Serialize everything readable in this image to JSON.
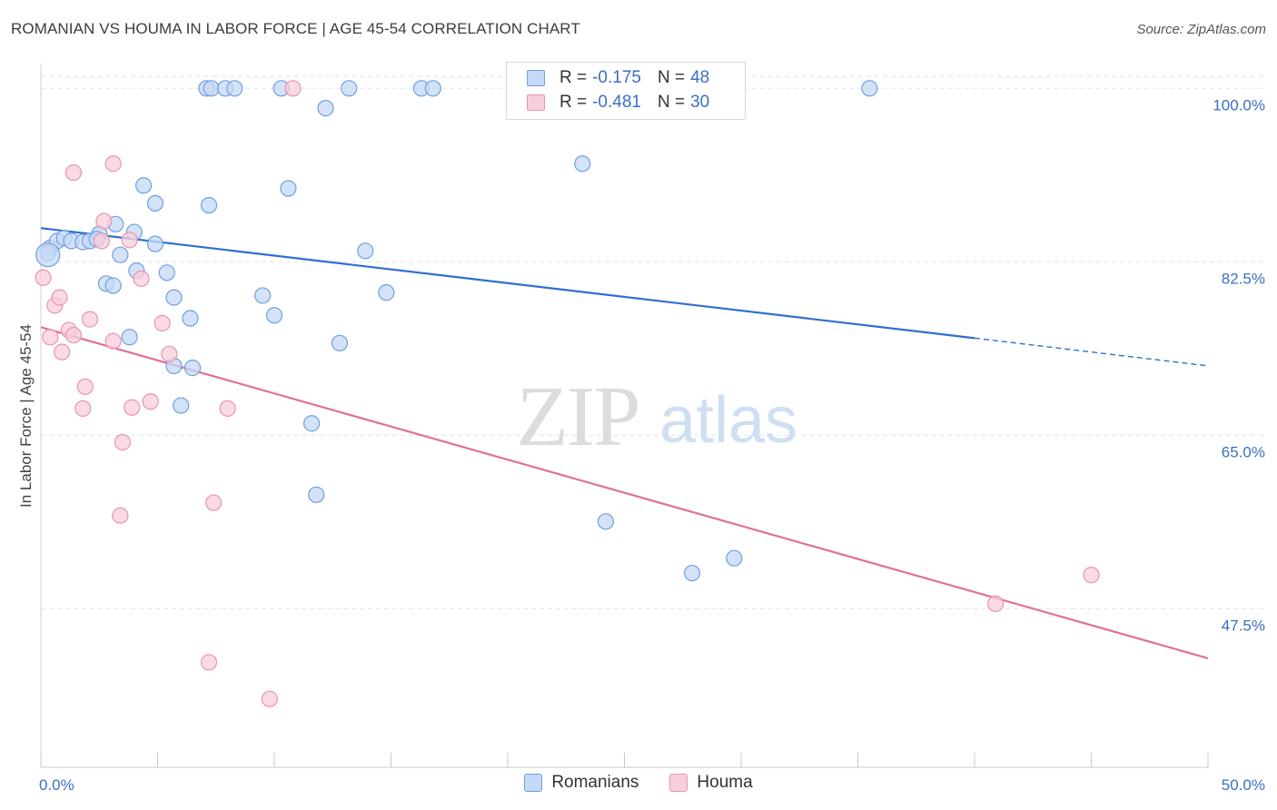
{
  "header": {
    "title": "ROMANIAN VS HOUMA IN LABOR FORCE | AGE 45-54 CORRELATION CHART",
    "source": "Source: ZipAtlas.com"
  },
  "watermark": {
    "zip": "ZIP",
    "atlas": "atlas"
  },
  "legend": {
    "rows": [
      {
        "r_label": "R =",
        "r_value": "-0.175",
        "n_label": "N =",
        "n_value": "48",
        "color": "#6f9fe0",
        "fill": "#c5d8f5"
      },
      {
        "r_label": "R =",
        "r_value": "-0.481",
        "n_label": "N =",
        "n_value": "30",
        "color": "#e894b0",
        "fill": "#f8cedb"
      }
    ]
  },
  "bottom_legend": [
    "Romanians",
    "Houma"
  ],
  "chart_data": {
    "type": "scatter",
    "title": "ROMANIAN VS HOUMA IN LABOR FORCE | AGE 45-54 CORRELATION CHART",
    "xlabel": "",
    "ylabel": "In Labor Force | Age 45-54",
    "xlim": [
      0,
      50
    ],
    "ylim": [
      31.5,
      102.5
    ],
    "x_tick_labels": [
      "0.0%",
      "50.0%"
    ],
    "y_ticks": [
      47.5,
      65.0,
      82.5,
      100.0
    ],
    "y_tick_labels": [
      "47.5%",
      "65.0%",
      "82.5%",
      "100.0%"
    ],
    "grid": true,
    "legend_position": "top-center",
    "series": [
      {
        "name": "Romanians",
        "color": "#6f9fe0",
        "fill": "#c5d8f5",
        "points": [
          [
            0.4,
            83.9
          ],
          [
            0.7,
            84.6
          ],
          [
            1.0,
            84.9
          ],
          [
            1.3,
            84.6
          ],
          [
            1.8,
            84.5
          ],
          [
            2.1,
            84.6
          ],
          [
            2.5,
            85.3
          ],
          [
            3.2,
            86.3
          ],
          [
            4.0,
            85.5
          ],
          [
            4.9,
            84.3
          ],
          [
            2.8,
            80.3
          ],
          [
            3.1,
            80.1
          ],
          [
            3.4,
            83.2
          ],
          [
            4.1,
            81.6
          ],
          [
            4.4,
            90.2
          ],
          [
            4.9,
            88.4
          ],
          [
            5.4,
            81.4
          ],
          [
            5.7,
            78.9
          ],
          [
            6.4,
            76.8
          ],
          [
            7.1,
            100.0
          ],
          [
            7.3,
            100.0
          ],
          [
            7.9,
            100.0
          ],
          [
            8.3,
            100.0
          ],
          [
            7.2,
            88.2
          ],
          [
            10.6,
            89.9
          ],
          [
            10.3,
            100.0
          ],
          [
            13.2,
            100.0
          ],
          [
            16.3,
            100.0
          ],
          [
            16.8,
            100.0
          ],
          [
            12.2,
            98.0
          ],
          [
            9.5,
            79.1
          ],
          [
            10.0,
            77.1
          ],
          [
            12.8,
            74.3
          ],
          [
            13.9,
            83.6
          ],
          [
            14.8,
            79.4
          ],
          [
            6.0,
            68.0
          ],
          [
            5.7,
            72.0
          ],
          [
            3.8,
            74.9
          ],
          [
            11.6,
            66.2
          ],
          [
            11.8,
            59.0
          ],
          [
            24.2,
            56.3
          ],
          [
            23.2,
            92.4
          ],
          [
            35.5,
            100.0
          ],
          [
            27.9,
            51.1
          ],
          [
            29.7,
            52.6
          ],
          [
            0.3,
            83.4
          ],
          [
            2.4,
            84.8
          ],
          [
            6.5,
            71.8
          ]
        ]
      },
      {
        "name": "Houma",
        "color": "#e894b0",
        "fill": "#f8cedb",
        "points": [
          [
            0.1,
            80.9
          ],
          [
            0.4,
            74.9
          ],
          [
            0.6,
            78.1
          ],
          [
            0.8,
            78.9
          ],
          [
            0.9,
            73.4
          ],
          [
            1.2,
            75.6
          ],
          [
            1.4,
            75.1
          ],
          [
            1.8,
            67.7
          ],
          [
            1.9,
            69.9
          ],
          [
            2.1,
            76.7
          ],
          [
            2.7,
            86.6
          ],
          [
            3.1,
            74.5
          ],
          [
            1.4,
            91.5
          ],
          [
            3.1,
            92.4
          ],
          [
            3.4,
            56.9
          ],
          [
            3.5,
            64.3
          ],
          [
            3.8,
            84.7
          ],
          [
            3.9,
            67.8
          ],
          [
            4.3,
            80.8
          ],
          [
            4.7,
            68.4
          ],
          [
            5.2,
            76.3
          ],
          [
            5.5,
            73.2
          ],
          [
            7.2,
            42.1
          ],
          [
            7.4,
            58.2
          ],
          [
            8.0,
            67.7
          ],
          [
            9.8,
            38.4
          ],
          [
            10.8,
            100.0
          ],
          [
            40.9,
            48.0
          ],
          [
            45.0,
            50.9
          ],
          [
            2.6,
            84.6
          ]
        ]
      }
    ],
    "trend_lines": [
      {
        "series": "Romanians",
        "x": [
          0,
          40
        ],
        "y": [
          85.9,
          74.8
        ],
        "dashed_to": [
          50,
          72.0
        ]
      },
      {
        "series": "Houma",
        "x": [
          0,
          50
        ],
        "y": [
          75.9,
          42.5
        ]
      }
    ]
  }
}
